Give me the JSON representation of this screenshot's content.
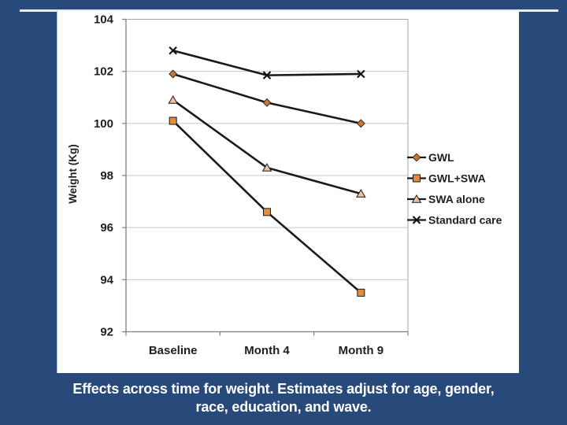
{
  "slide": {
    "background_color": "#274A7B",
    "accent_line_color": "#E7EDF6",
    "panel_color": "#FFFFFF"
  },
  "caption": {
    "line1": "Effects across time for weight. Estimates adjust for age, gender,",
    "line2": "race, education, and wave.",
    "color": "#FFFFFF"
  },
  "chart_data": {
    "type": "line",
    "title": "",
    "xlabel": "",
    "ylabel": "Weight (Kg)",
    "categories": [
      "Baseline",
      "Month 4",
      "Month 9"
    ],
    "series": [
      {
        "name": "GWL",
        "marker": "diamond",
        "marker_fill": "#BE7A3C",
        "values": [
          101.9,
          100.8,
          100.0
        ]
      },
      {
        "name": "GWL+SWA",
        "marker": "square",
        "marker_fill": "#E08E3E",
        "values": [
          100.1,
          96.6,
          93.5
        ]
      },
      {
        "name": "SWA alone",
        "marker": "triangle",
        "marker_fill": "#EFC09E",
        "values": [
          100.9,
          98.3,
          97.3
        ]
      },
      {
        "name": "Standard care",
        "marker": "x",
        "marker_fill": "#111111",
        "values": [
          102.8,
          101.85,
          101.9
        ]
      }
    ],
    "ylim": [
      92,
      104
    ],
    "yticks": [
      92,
      94,
      96,
      98,
      100,
      102,
      104
    ],
    "grid": true,
    "gridline_color": "#C6C6C6",
    "axis_color": "#808080",
    "border_color": "#A6A6A6",
    "line_color": "#1A1A1A",
    "text_color": "#1F1F1F",
    "legend_position": "right"
  }
}
